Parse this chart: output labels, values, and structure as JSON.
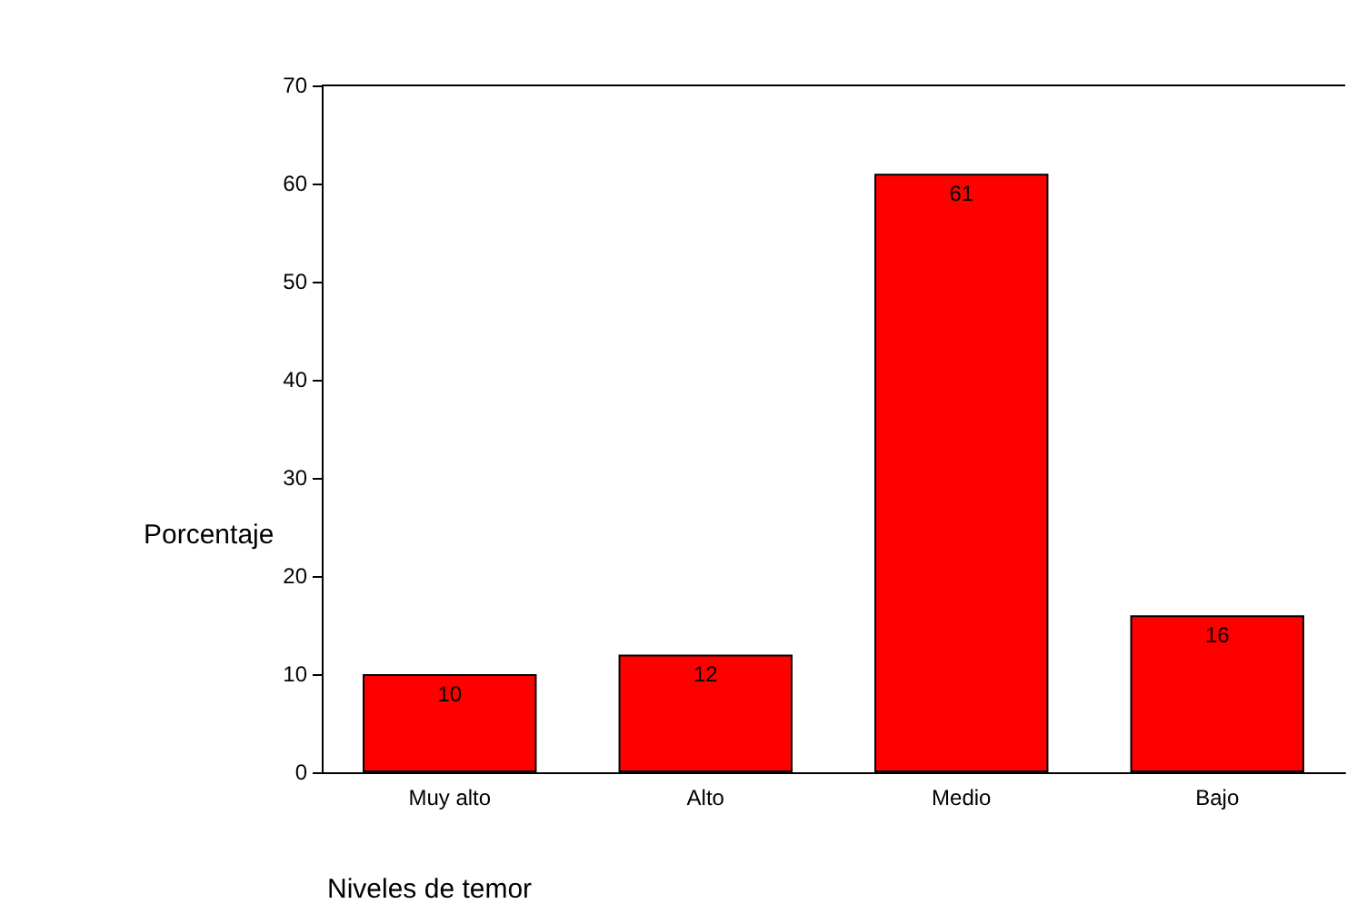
{
  "chart_data": {
    "type": "bar",
    "xlabel": "Niveles de temor",
    "ylabel": "Porcentaje",
    "categories": [
      "Muy alto",
      "Alto",
      "Medio",
      "Bajo"
    ],
    "values": [
      10,
      12,
      61,
      16
    ],
    "color": "#ff0000",
    "ylim": [
      0,
      70
    ],
    "yticks": [
      0,
      10,
      20,
      30,
      40,
      50,
      60,
      70
    ],
    "grid": false,
    "data_labels": true
  }
}
